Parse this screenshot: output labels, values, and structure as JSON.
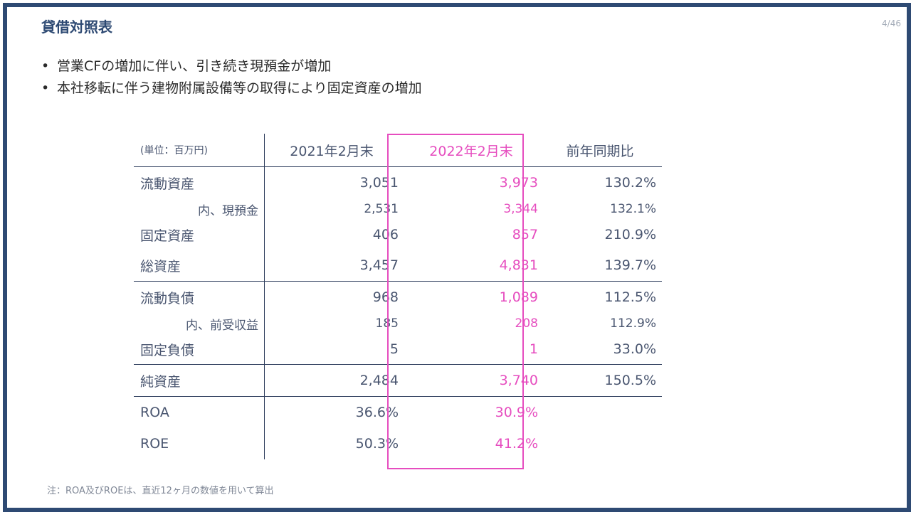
{
  "title": "貸借対照表",
  "page_number": "4/46",
  "bullets": [
    "営業CFの増加に伴い、引き続き現預金が増加",
    "本社移転に伴う建物附属設備等の取得により固定資産の増加"
  ],
  "table": {
    "unit_label": "(単位：百万円)",
    "headers": [
      "2021年2月末",
      "2022年2月末",
      "前年同期比"
    ],
    "rows": [
      {
        "label": "流動資産",
        "v2021": "3,051",
        "v2022": "3,973",
        "yoy": "130.2%"
      },
      {
        "label": "内、現預金",
        "v2021": "2,531",
        "v2022": "3,344",
        "yoy": "132.1%"
      },
      {
        "label": "固定資産",
        "v2021": "406",
        "v2022": "857",
        "yoy": "210.9%"
      },
      {
        "label": "総資産",
        "v2021": "3,457",
        "v2022": "4,831",
        "yoy": "139.7%"
      },
      {
        "label": "流動負債",
        "v2021": "968",
        "v2022": "1,089",
        "yoy": "112.5%"
      },
      {
        "label": "内、前受収益",
        "v2021": "185",
        "v2022": "208",
        "yoy": "112.9%"
      },
      {
        "label": "固定負債",
        "v2021": "5",
        "v2022": "1",
        "yoy": "33.0%"
      },
      {
        "label": "純資産",
        "v2021": "2,484",
        "v2022": "3,740",
        "yoy": "150.5%"
      },
      {
        "label": "ROA",
        "v2021": "36.6%",
        "v2022": "30.9%",
        "yoy": ""
      },
      {
        "label": "ROE",
        "v2021": "50.3%",
        "v2022": "41.2%",
        "yoy": ""
      }
    ]
  },
  "note": "注：ROA及びROEは、直近12ヶ月の数値を用いて算出",
  "colors": {
    "frame": "#2e4a73",
    "highlight": "#e64dbf",
    "text": "#4a5670"
  }
}
